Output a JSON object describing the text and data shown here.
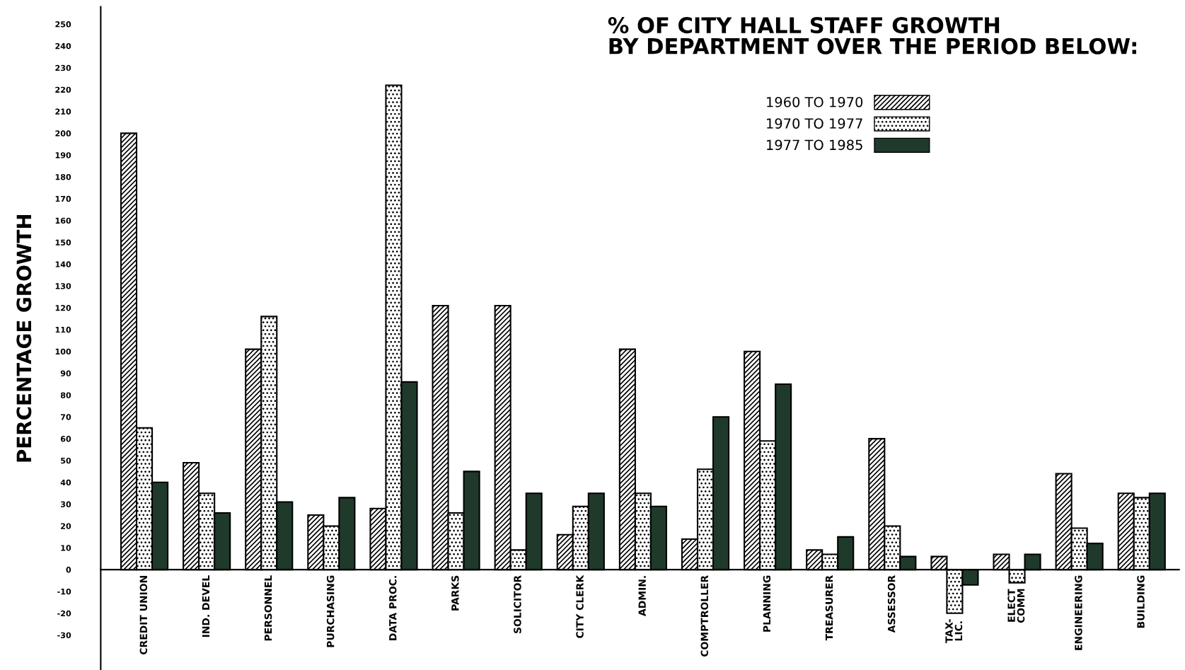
{
  "chart_data": {
    "type": "bar",
    "title": "% OF CITY HALL STAFF GROWTH\nBY DEPARTMENT OVER THE PERIOD BELOW:",
    "ylabel": "PERCENTAGE GROWTH",
    "categories": [
      "CREDIT UNION",
      "IND. DEVEL",
      "PERSONNEL",
      "PURCHASING",
      "DATA PROC.",
      "PARKS",
      "SOLICITOR",
      "CITY CLERK",
      "ADMIN.",
      "COMPTROLLER",
      "PLANNING",
      "TREASURER",
      "ASSESSOR",
      "TAX-\nLIC.",
      "ELECT\nCOMM",
      "ENGINEERING",
      "BUILDING"
    ],
    "series": [
      {
        "name": "1960 TO 1970",
        "color": "#000000",
        "values": [
          200,
          49,
          101,
          25,
          28,
          121,
          121,
          16,
          101,
          14,
          100,
          9,
          60,
          6,
          7,
          44,
          35
        ]
      },
      {
        "name": "1970 TO 1977",
        "color": "#000000",
        "values": [
          65,
          35,
          116,
          20,
          222,
          26,
          9,
          29,
          35,
          46,
          59,
          7,
          20,
          -20,
          -6,
          19,
          33
        ]
      },
      {
        "name": "1977 TO 1985",
        "color": "#1f3a2a",
        "values": [
          40,
          26,
          31,
          33,
          86,
          45,
          35,
          35,
          29,
          70,
          85,
          15,
          6,
          -7,
          7,
          12,
          35
        ]
      }
    ],
    "ylim": [
      -46,
      258
    ],
    "yticks": [
      -30,
      -20,
      -10,
      0,
      10,
      20,
      30,
      40,
      50,
      60,
      70,
      80,
      90,
      100,
      110,
      120,
      130,
      140,
      150,
      160,
      170,
      180,
      190,
      200,
      210,
      220,
      230,
      240,
      250
    ],
    "grid": false,
    "legend": "top right"
  }
}
